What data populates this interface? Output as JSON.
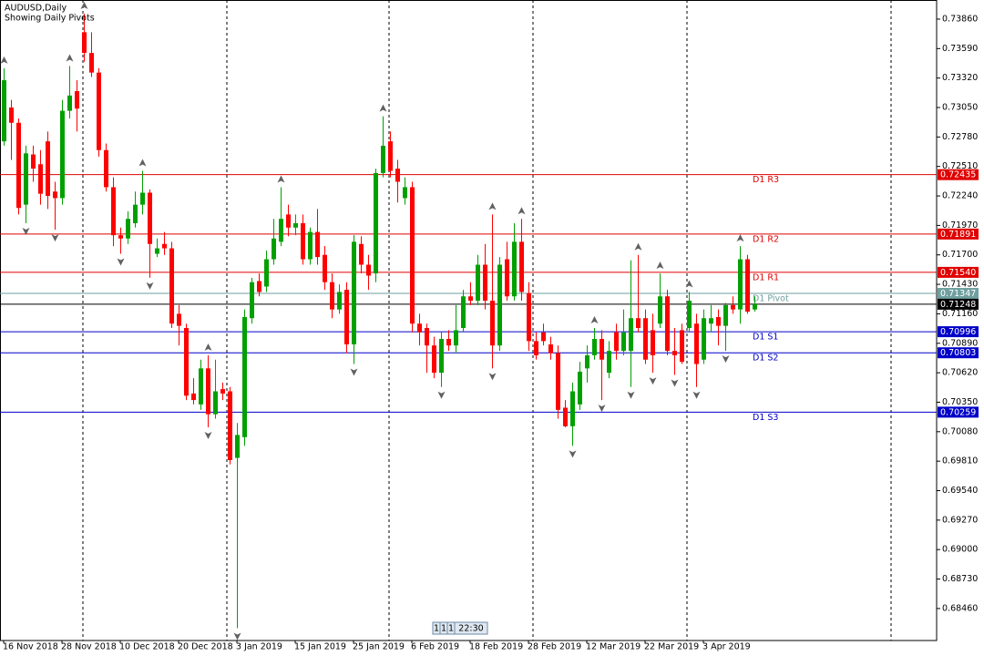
{
  "chart_data": {
    "type": "candlestick",
    "title": "AUDUSD,Daily",
    "subtitle": "Showing Daily Pivots",
    "up_color": "#00a000",
    "down_color": "#ff0000",
    "categories": [
      "16 Nov 2018",
      null,
      null,
      null,
      null,
      null,
      null,
      null,
      "28 Nov 2018",
      null,
      null,
      null,
      null,
      null,
      null,
      null,
      "10 Dec 2018",
      null,
      null,
      null,
      null,
      null,
      null,
      null,
      "20 Dec 2018",
      null,
      null,
      null,
      null,
      null,
      null,
      null,
      "3 Jan 2019",
      null,
      null,
      null,
      null,
      null,
      null,
      null,
      "15 Jan 2019",
      null,
      null,
      null,
      null,
      null,
      null,
      null,
      "25 Jan 2019",
      null,
      null,
      null,
      null,
      null,
      null,
      null,
      "6 Feb 2019",
      null,
      null,
      null,
      null,
      null,
      null,
      null,
      "18 Feb 2019",
      null,
      null,
      null,
      null,
      null,
      null,
      null,
      "28 Feb 2019",
      null,
      null,
      null,
      null,
      null,
      null,
      null,
      "12 Mar 2019",
      null,
      null,
      null,
      null,
      null,
      null,
      null,
      "22 Mar 2019",
      null,
      null,
      null,
      null,
      null,
      null,
      null,
      "3 Apr 2019",
      null,
      null,
      null,
      null,
      null,
      null,
      null
    ],
    "open": [
      0.7274,
      0.7305,
      0.7291,
      0.7216,
      0.7262,
      0.7253,
      0.7274,
      0.7228,
      0.7222,
      0.7302,
      0.732,
      0.7374,
      0.7355,
      0.7337,
      0.7266,
      0.7232,
      0.7188,
      0.7185,
      0.7199,
      0.7216,
      0.7227,
      0.7171,
      0.718,
      0.7176,
      0.7116,
      0.7103,
      0.7043,
      0.7033,
      0.7066,
      0.7024,
      0.7047,
      0.7045,
      0.6984,
      0.7003,
      0.7112,
      0.7146,
      0.7141,
      0.7166,
      0.7182,
      0.7207,
      0.7195,
      0.7199,
      0.7166,
      0.7191,
      0.717,
      0.7145,
      0.712,
      0.7138,
      0.7088,
      0.718,
      0.7161,
      0.7153,
      0.7245,
      0.7274,
      0.7249,
      0.7222,
      0.7232,
      0.7107,
      0.7103,
      0.7087,
      0.7062,
      0.7093,
      0.7087,
      0.7103,
      0.7132,
      0.7128,
      0.7161,
      0.7128,
      0.7087,
      0.7166,
      0.7132,
      0.7182,
      0.7135,
      0.7091,
      0.7099,
      0.7088,
      0.708,
      0.703,
      0.7013,
      0.7033,
      0.7066,
      0.7078,
      0.7093,
      0.7062,
      0.7099,
      0.7082,
      0.7082,
      0.7112,
      0.7112,
      0.7101,
      0.7107,
      0.7132,
      0.7082,
      0.7101,
      0.7103,
      0.7107,
      0.7074,
      0.7107,
      0.7113,
      0.7105,
      0.7124,
      0.712,
      0.7166,
      0.712
    ],
    "high": [
      0.7341,
      0.7312,
      0.7295,
      0.727,
      0.727,
      0.7266,
      0.7283,
      0.7237,
      0.7312,
      0.7343,
      0.733,
      0.7391,
      0.7374,
      0.7341,
      0.7272,
      0.7241,
      0.7195,
      0.721,
      0.7228,
      0.7247,
      0.723,
      0.7185,
      0.7191,
      0.7182,
      0.7124,
      0.7107,
      0.7057,
      0.7074,
      0.7078,
      0.7074,
      0.7053,
      0.7049,
      0.7016,
      0.712,
      0.7149,
      0.7153,
      0.7174,
      0.7203,
      0.7232,
      0.7216,
      0.7207,
      0.7207,
      0.7195,
      0.7212,
      0.7178,
      0.7153,
      0.7143,
      0.7145,
      0.7188,
      0.7187,
      0.717,
      0.7249,
      0.7297,
      0.7283,
      0.7257,
      0.7241,
      0.7237,
      0.7116,
      0.7107,
      0.7095,
      0.7099,
      0.7101,
      0.7124,
      0.7138,
      0.7145,
      0.717,
      0.718,
      0.7207,
      0.7168,
      0.7182,
      0.7199,
      0.7203,
      0.7145,
      0.7099,
      0.7107,
      0.7095,
      0.7087,
      0.7037,
      0.7053,
      0.7072,
      0.7087,
      0.7103,
      0.7101,
      0.7091,
      0.7107,
      0.712,
      0.7165,
      0.717,
      0.712,
      0.7116,
      0.7153,
      0.7138,
      0.7103,
      0.7107,
      0.7136,
      0.7116,
      0.712,
      0.7124,
      0.712,
      0.7126,
      0.7132,
      0.7178,
      0.717,
      0.7132
    ],
    "low": [
      0.727,
      0.7257,
      0.7207,
      0.7199,
      0.7237,
      0.7216,
      0.7212,
      0.7193,
      0.7216,
      0.7295,
      0.7283,
      0.7347,
      0.7333,
      0.726,
      0.7228,
      0.7178,
      0.7171,
      0.718,
      0.7195,
      0.7207,
      0.7149,
      0.7168,
      0.717,
      0.7103,
      0.7087,
      0.7037,
      0.7033,
      0.7028,
      0.7012,
      0.702,
      0.7037,
      0.6978,
      0.6828,
      0.6995,
      0.7107,
      0.7132,
      0.7136,
      0.7161,
      0.7178,
      0.7187,
      0.7188,
      0.7161,
      0.7161,
      0.7161,
      0.7138,
      0.7112,
      0.7116,
      0.708,
      0.707,
      0.7153,
      0.7138,
      0.7145,
      0.7241,
      0.7241,
      0.7218,
      0.7216,
      0.7099,
      0.7087,
      0.7062,
      0.7057,
      0.7049,
      0.7082,
      0.708,
      0.7099,
      0.7124,
      0.7124,
      0.712,
      0.7066,
      0.7082,
      0.7128,
      0.7128,
      0.7128,
      0.7082,
      0.7074,
      0.7087,
      0.7074,
      0.702,
      0.7012,
      0.6995,
      0.7028,
      0.7053,
      0.7074,
      0.7037,
      0.7057,
      0.7074,
      0.7078,
      0.7049,
      0.7099,
      0.707,
      0.7062,
      0.7103,
      0.7078,
      0.706,
      0.707,
      0.7099,
      0.7049,
      0.707,
      0.7099,
      0.7087,
      0.7082,
      0.7116,
      0.7107,
      0.7116,
      0.7118
    ],
    "close": [
      0.733,
      0.7291,
      0.7213,
      0.7263,
      0.7249,
      0.7226,
      0.7224,
      0.7222,
      0.7302,
      0.7316,
      0.7304,
      0.7355,
      0.7337,
      0.7266,
      0.7232,
      0.7188,
      0.7185,
      0.7203,
      0.7216,
      0.7227,
      0.718,
      0.7176,
      0.7176,
      0.7107,
      0.7105,
      0.7041,
      0.7037,
      0.7066,
      0.7024,
      0.7045,
      0.7043,
      0.6982,
      0.7005,
      0.7113,
      0.7145,
      0.7136,
      0.7166,
      0.7185,
      0.7203,
      0.7195,
      0.7199,
      0.7166,
      0.7191,
      0.7168,
      0.7145,
      0.712,
      0.7136,
      0.7088,
      0.7182,
      0.7161,
      0.7151,
      0.7245,
      0.727,
      0.7247,
      0.7237,
      0.7232,
      0.7107,
      0.7099,
      0.7087,
      0.7062,
      0.7093,
      0.7087,
      0.7101,
      0.7132,
      0.7128,
      0.7161,
      0.7128,
      0.7087,
      0.7161,
      0.7132,
      0.7182,
      0.7136,
      0.7091,
      0.7078,
      0.7091,
      0.708,
      0.7028,
      0.7013,
      0.7045,
      0.7063,
      0.7078,
      0.7093,
      0.7074,
      0.7082,
      0.7082,
      0.7099,
      0.7112,
      0.7103,
      0.7074,
      0.7078,
      0.7132,
      0.7082,
      0.7078,
      0.7072,
      0.7128,
      0.707,
      0.7112,
      0.7112,
      0.7105,
      0.7124,
      0.712,
      0.7166,
      0.7118,
      0.71248
    ],
    "fractals_up": [
      0.7341,
      null,
      null,
      null,
      null,
      null,
      null,
      null,
      null,
      0.7343,
      null,
      0.7391,
      null,
      null,
      null,
      null,
      null,
      null,
      null,
      0.7247,
      null,
      null,
      null,
      null,
      null,
      null,
      null,
      null,
      0.7078,
      null,
      null,
      null,
      null,
      null,
      null,
      null,
      null,
      null,
      0.7232,
      null,
      null,
      null,
      null,
      null,
      null,
      null,
      null,
      null,
      null,
      null,
      null,
      null,
      0.7297,
      null,
      null,
      null,
      null,
      null,
      null,
      null,
      null,
      null,
      null,
      null,
      null,
      null,
      null,
      0.7207,
      null,
      null,
      null,
      0.7203,
      null,
      null,
      null,
      null,
      null,
      null,
      null,
      null,
      null,
      0.7103,
      null,
      null,
      null,
      null,
      null,
      0.717,
      null,
      null,
      0.7153,
      null,
      null,
      null,
      0.7136,
      null,
      null,
      null,
      null,
      null,
      null,
      0.7178,
      null,
      null
    ],
    "fractals_down": [
      null,
      null,
      null,
      0.7199,
      null,
      null,
      null,
      0.7193,
      null,
      null,
      null,
      null,
      null,
      null,
      null,
      null,
      0.7171,
      null,
      null,
      null,
      0.7149,
      null,
      null,
      null,
      null,
      null,
      null,
      null,
      0.7012,
      null,
      null,
      null,
      0.6828,
      null,
      null,
      null,
      null,
      null,
      null,
      null,
      null,
      null,
      null,
      null,
      null,
      null,
      null,
      null,
      0.707,
      null,
      null,
      null,
      null,
      null,
      null,
      null,
      null,
      null,
      null,
      null,
      0.7049,
      null,
      null,
      null,
      null,
      null,
      null,
      0.7066,
      null,
      null,
      null,
      null,
      null,
      null,
      null,
      null,
      null,
      null,
      0.6995,
      null,
      null,
      null,
      0.7037,
      null,
      null,
      null,
      0.7049,
      null,
      null,
      0.7062,
      null,
      null,
      0.706,
      null,
      null,
      0.7049,
      null,
      null,
      null,
      0.7082,
      null,
      null,
      null,
      null
    ],
    "levels": [
      {
        "name": "D1 R3",
        "value": 0.72435,
        "color": "#e00000"
      },
      {
        "name": "D1 R2",
        "value": 0.71891,
        "color": "#e00000"
      },
      {
        "name": "D1 R1",
        "value": 0.7154,
        "value_label": "0.71540",
        "color": "#e00000"
      },
      {
        "name": "D1 Pivot",
        "value": 0.71347,
        "color": "#6f9f9f"
      },
      {
        "name": "D1 S1",
        "value": 0.70996,
        "color": "#0000c8"
      },
      {
        "name": "D1 S2",
        "value": 0.70803,
        "color": "#0000c8"
      },
      {
        "name": "D1 S3",
        "value": 0.70259,
        "color": "#0000c8"
      }
    ],
    "current_price": {
      "value": 0.71248,
      "color": "#000000"
    },
    "ylim": [
      0.68167,
      0.74035
    ],
    "yticks": [
      {
        "value": 0.7386,
        "label": "0.73860"
      },
      {
        "value": 0.7359,
        "label": "0.73590"
      },
      {
        "value": 0.7332,
        "label": "0.73320"
      },
      {
        "value": 0.7305,
        "label": "0.73050"
      },
      {
        "value": 0.7278,
        "label": "0.72780"
      },
      {
        "value": 0.7251,
        "label": "0.72510"
      },
      {
        "value": 0.7224,
        "label": "0.72240"
      },
      {
        "value": 0.7197,
        "label": "0.71970"
      },
      {
        "value": 0.717,
        "label": "0.71700"
      },
      {
        "value": 0.7143,
        "label": "0.71430"
      },
      {
        "value": 0.7116,
        "label": "0.71160"
      },
      {
        "value": 0.7089,
        "label": "0.70890"
      },
      {
        "value": 0.7062,
        "label": "0.70620"
      },
      {
        "value": 0.7035,
        "label": "0.70350"
      },
      {
        "value": 0.7008,
        "label": "0.70080"
      },
      {
        "value": 0.6981,
        "label": "0.69810"
      },
      {
        "value": 0.6954,
        "label": "0.69540"
      },
      {
        "value": 0.6927,
        "label": "0.69270"
      },
      {
        "value": 0.69,
        "label": "0.69000"
      },
      {
        "value": 0.6873,
        "label": "0.68730"
      },
      {
        "value": 0.6846,
        "label": "0.68460"
      }
    ],
    "footer_badges": [
      "1",
      "1",
      "1",
      "22:30"
    ]
  }
}
